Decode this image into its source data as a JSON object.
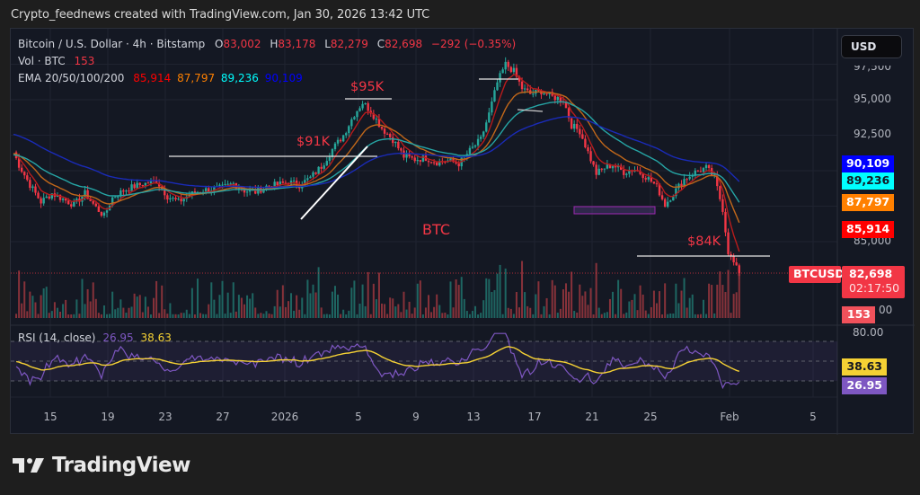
{
  "credit": "Crypto_feednews created with TradingView.com, Jan 30, 2026 13:42 UTC",
  "symbol": {
    "name": "Bitcoin / U.S. Dollar · 4h · Bitstamp",
    "open_label": "O",
    "open": "83,002",
    "high_label": "H",
    "high": "83,178",
    "low_label": "L",
    "low": "82,279",
    "close_label": "C",
    "close": "82,698",
    "change": "−292 (−0.35%)"
  },
  "volume": {
    "label": "Vol · BTC",
    "value": "153"
  },
  "ema": {
    "label": "EMA 20/50/100/200",
    "values": [
      "85,914",
      "87,797",
      "89,236",
      "90,109"
    ],
    "colors": [
      "#ff0000",
      "#ff8000",
      "#00ffff",
      "#0000ff"
    ]
  },
  "currency_button": "USD",
  "price_axis": {
    "ticks": [
      {
        "label": "97,500",
        "value": 97500
      },
      {
        "label": "95,000",
        "value": 95000
      },
      {
        "label": "92,500",
        "value": 92500
      },
      {
        "label": "85,000",
        "value": 85000
      }
    ],
    "vol_tick": "00",
    "tags": [
      {
        "label": "90,109",
        "value": 90109,
        "bg": "#0000ff",
        "fg": "#ffffff"
      },
      {
        "label": "89,236",
        "value": 89236,
        "bg": "#00ffff",
        "fg": "#131722"
      },
      {
        "label": "87,797",
        "value": 87797,
        "bg": "#ff8000",
        "fg": "#ffffff"
      },
      {
        "label": "85,914",
        "value": 85914,
        "bg": "#ff0000",
        "fg": "#ffffff"
      }
    ],
    "last_price": {
      "symbol": "BTCUSD",
      "price": "82,698",
      "countdown": "02:17:50",
      "bg": "#f23645"
    },
    "volume_tag": {
      "label": "153",
      "bg": "#f0515b"
    }
  },
  "rsi": {
    "label": "RSI (14, close)",
    "value": "26.95",
    "ma_value": "38.63",
    "axis_tick": "80.00",
    "rsi_color": "#7e57c2",
    "ma_color": "#f5d134"
  },
  "time_axis": {
    "labels": [
      "15",
      "19",
      "23",
      "27",
      "2026",
      "5",
      "9",
      "13",
      "17",
      "21",
      "25",
      "Feb",
      "5"
    ]
  },
  "annotations": {
    "k91": "$91K",
    "k95": "$95K",
    "k84": "$84K",
    "btc": "BTC"
  },
  "brand": "TradingView",
  "colors": {
    "up": "#26a69a",
    "down": "#f23645",
    "background": "#141823",
    "grid": "#1f2330"
  },
  "chart_data": {
    "type": "candlestick",
    "title": "Bitcoin / U.S. Dollar · 4h · Bitstamp",
    "timeframe": "4h",
    "x_labels": [
      "15",
      "19",
      "23",
      "27",
      "2026",
      "5",
      "9",
      "13",
      "17",
      "21",
      "25",
      "Feb",
      "5"
    ],
    "ylim": [
      79000,
      98800
    ],
    "price_path": [
      [
        0,
        91300
      ],
      [
        2,
        90400
      ],
      [
        6,
        89000
      ],
      [
        10,
        87800
      ],
      [
        14,
        88400
      ],
      [
        18,
        88000
      ],
      [
        22,
        87600
      ],
      [
        26,
        88400
      ],
      [
        30,
        87400
      ],
      [
        33,
        86800
      ],
      [
        36,
        88100
      ],
      [
        40,
        88600
      ],
      [
        44,
        88900
      ],
      [
        48,
        89100
      ],
      [
        52,
        89300
      ],
      [
        56,
        88200
      ],
      [
        60,
        87800
      ],
      [
        64,
        88300
      ],
      [
        68,
        88600
      ],
      [
        72,
        88700
      ],
      [
        76,
        88800
      ],
      [
        80,
        89100
      ],
      [
        84,
        88600
      ],
      [
        88,
        88500
      ],
      [
        92,
        88900
      ],
      [
        96,
        89000
      ],
      [
        100,
        89200
      ],
      [
        104,
        89000
      ],
      [
        108,
        89500
      ],
      [
        112,
        90300
      ],
      [
        116,
        91500
      ],
      [
        120,
        92500
      ],
      [
        124,
        94000
      ],
      [
        127,
        94800
      ],
      [
        130,
        94200
      ],
      [
        134,
        93000
      ],
      [
        138,
        92200
      ],
      [
        142,
        91000
      ],
      [
        146,
        90800
      ],
      [
        150,
        90900
      ],
      [
        154,
        90600
      ],
      [
        158,
        90700
      ],
      [
        162,
        90500
      ],
      [
        166,
        91400
      ],
      [
        170,
        92200
      ],
      [
        173,
        94000
      ],
      [
        176,
        96200
      ],
      [
        179,
        97500
      ],
      [
        182,
        97000
      ],
      [
        185,
        95800
      ],
      [
        188,
        95400
      ],
      [
        192,
        95600
      ],
      [
        196,
        95200
      ],
      [
        200,
        95000
      ],
      [
        203,
        93200
      ],
      [
        206,
        92800
      ],
      [
        209,
        91300
      ],
      [
        212,
        89800
      ],
      [
        215,
        90200
      ],
      [
        218,
        90400
      ],
      [
        222,
        89900
      ],
      [
        226,
        90100
      ],
      [
        230,
        89600
      ],
      [
        234,
        88900
      ],
      [
        237,
        87600
      ],
      [
        240,
        88400
      ],
      [
        244,
        89400
      ],
      [
        248,
        89900
      ],
      [
        252,
        90200
      ],
      [
        255,
        89500
      ],
      [
        258,
        87300
      ],
      [
        260,
        84300
      ],
      [
        262,
        83500
      ],
      [
        264,
        82700
      ]
    ],
    "ema_series": [
      {
        "name": "EMA 20",
        "color": "#b71c1c",
        "last": 85914
      },
      {
        "name": "EMA 50",
        "color": "#c1671a",
        "last": 87797
      },
      {
        "name": "EMA 100",
        "color": "#26a5a5",
        "last": 89236
      },
      {
        "name": "EMA 200",
        "color": "#1a2bb8",
        "last": 90109
      }
    ],
    "levels": [
      {
        "label": "$91K",
        "price": 90600
      },
      {
        "label": "$95K",
        "price": 95000
      },
      {
        "label": "$84K",
        "price": 84300
      }
    ],
    "volume_last": 153,
    "rsi": {
      "period": 14,
      "value": 26.95,
      "ma": 38.63,
      "bands": [
        70,
        50,
        30
      ]
    }
  }
}
